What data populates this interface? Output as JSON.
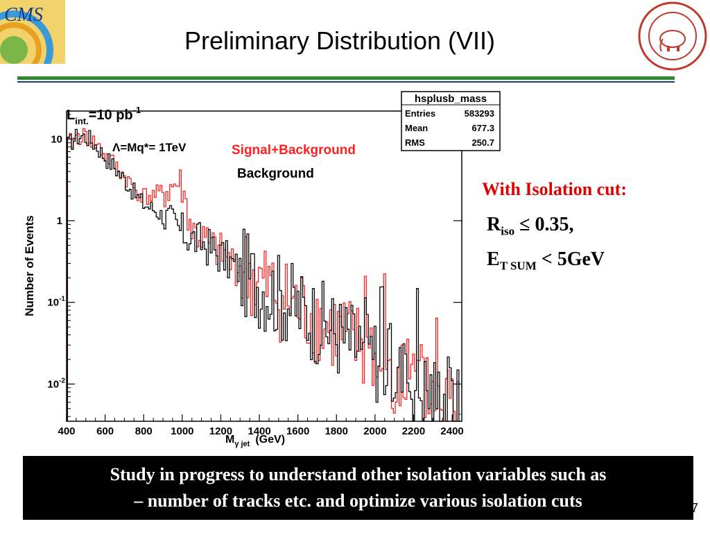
{
  "slide": {
    "title": "Preliminary Distribution (VII)",
    "page_number": "7",
    "colors": {
      "rule_green": "#2e8b2e",
      "rule_blue": "#1a3a8a",
      "highlight_red": "#e00000"
    }
  },
  "logos": {
    "left": "cms-logo",
    "right": "university-of-delhi-seal-icon"
  },
  "isolation": {
    "heading": "With Isolation cut:",
    "r_main": "R",
    "r_sub": "iso",
    "r_rest": " ≤ 0.35,",
    "e_main": "E",
    "e_sub": "T SUM",
    "e_rest": " < 5GeV"
  },
  "note": {
    "line1": "Study in progress to understand other isolation variables such as",
    "line2": "– number of tracks etc. and optimize various isolation cuts"
  },
  "chart_data": {
    "type": "histogram",
    "log_y": true,
    "xlim": [
      400,
      2450
    ],
    "ylim": [
      0.0035,
      22
    ],
    "x_ticks": [
      400,
      600,
      800,
      1000,
      1200,
      1400,
      1600,
      1800,
      2000,
      2200,
      2400
    ],
    "y_ticks": [
      {
        "value": 10,
        "label": "10"
      },
      {
        "value": 1,
        "label": "1"
      },
      {
        "value": 0.1,
        "label": "10",
        "exp": "-1"
      },
      {
        "value": 0.01,
        "label": "10",
        "exp": "-2"
      }
    ],
    "xlabel": {
      "main": "M",
      "sub": "γ jet",
      "unit": "(GeV)"
    },
    "ylabel": "Number of Events",
    "lumi": {
      "main": "L",
      "sub": "int.",
      "eq": "=10 pb",
      "sup": "-1"
    },
    "lambda_label": "Λ=Mq*= 1TeV",
    "legend": [
      {
        "name": "Signal+Background",
        "color": "#ff2020"
      },
      {
        "name": "Background",
        "color": "#000000"
      }
    ],
    "stats_box": {
      "title": "hsplusb_mass",
      "rows": [
        {
          "label": "Entries",
          "value": "583293"
        },
        {
          "label": "Mean",
          "value": "677.3"
        },
        {
          "label": "RMS",
          "value": "250.7"
        }
      ]
    },
    "series": [
      {
        "name": "Background",
        "color": "#000000",
        "points": [
          [
            410,
            8.5
          ],
          [
            450,
            10.5
          ],
          [
            480,
            11
          ],
          [
            520,
            10
          ],
          [
            560,
            8
          ],
          [
            600,
            6
          ],
          [
            650,
            4.5
          ],
          [
            700,
            3.2
          ],
          [
            750,
            2.2
          ],
          [
            800,
            1.6
          ],
          [
            850,
            1.4
          ],
          [
            900,
            1.15
          ],
          [
            950,
            0.9
          ],
          [
            1000,
            0.72
          ],
          [
            1050,
            0.6
          ],
          [
            1100,
            0.55
          ],
          [
            1150,
            0.45
          ],
          [
            1200,
            0.38
          ],
          [
            1250,
            0.3
          ],
          [
            1300,
            0.25
          ],
          [
            1350,
            0.2
          ],
          [
            1400,
            0.17
          ],
          [
            1450,
            0.14
          ],
          [
            1500,
            0.12
          ],
          [
            1550,
            0.1
          ],
          [
            1600,
            0.085
          ],
          [
            1650,
            0.07
          ],
          [
            1700,
            0.06
          ],
          [
            1750,
            0.05
          ],
          [
            1800,
            0.042
          ],
          [
            1850,
            0.035
          ],
          [
            1900,
            0.03
          ],
          [
            1950,
            0.025
          ],
          [
            2000,
            0.022
          ],
          [
            2050,
            0.018
          ],
          [
            2100,
            0.015
          ],
          [
            2150,
            0.013
          ],
          [
            2200,
            0.011
          ],
          [
            2250,
            0.009
          ],
          [
            2300,
            0.008
          ],
          [
            2350,
            0.007
          ],
          [
            2400,
            0.006
          ],
          [
            2440,
            0.005
          ]
        ]
      },
      {
        "name": "Signal+Background",
        "color": "#ff2020",
        "points": [
          [
            410,
            8.5
          ],
          [
            450,
            10.5
          ],
          [
            480,
            11
          ],
          [
            520,
            10
          ],
          [
            560,
            8.2
          ],
          [
            600,
            6.3
          ],
          [
            650,
            4.8
          ],
          [
            700,
            3.5
          ],
          [
            750,
            2.5
          ],
          [
            800,
            2.0
          ],
          [
            850,
            2.0
          ],
          [
            900,
            2.2
          ],
          [
            950,
            2.6
          ],
          [
            980,
            2.9
          ],
          [
            1000,
            2.5
          ],
          [
            1030,
            1.2
          ],
          [
            1050,
            0.75
          ],
          [
            1100,
            0.6
          ],
          [
            1150,
            0.48
          ],
          [
            1200,
            0.4
          ],
          [
            1250,
            0.31
          ],
          [
            1300,
            0.26
          ],
          [
            1350,
            0.21
          ],
          [
            1400,
            0.17
          ],
          [
            1450,
            0.145
          ],
          [
            1500,
            0.12
          ],
          [
            1550,
            0.1
          ],
          [
            1600,
            0.085
          ],
          [
            1650,
            0.07
          ],
          [
            1700,
            0.06
          ],
          [
            1750,
            0.05
          ],
          [
            1800,
            0.042
          ],
          [
            1850,
            0.035
          ],
          [
            1900,
            0.03
          ],
          [
            1950,
            0.025
          ],
          [
            2000,
            0.022
          ],
          [
            2050,
            0.018
          ],
          [
            2100,
            0.015
          ],
          [
            2150,
            0.013
          ],
          [
            2200,
            0.011
          ],
          [
            2250,
            0.009
          ],
          [
            2300,
            0.008
          ],
          [
            2350,
            0.007
          ],
          [
            2400,
            0.006
          ],
          [
            2440,
            0.005
          ]
        ]
      }
    ]
  }
}
